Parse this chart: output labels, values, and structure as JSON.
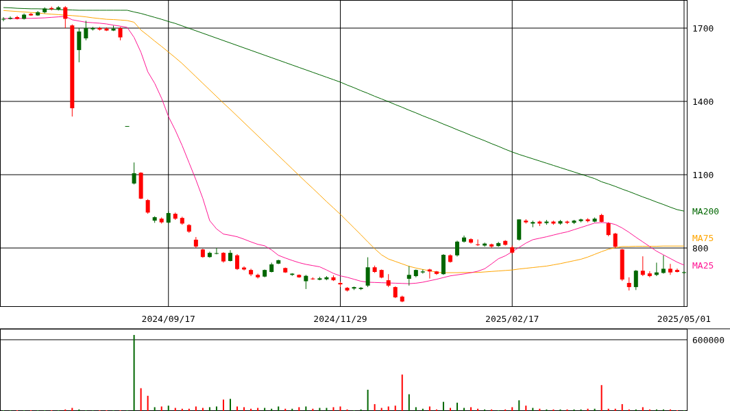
{
  "chart_data": [
    {
      "type": "candlestick",
      "categories": [
        null,
        null,
        null,
        null,
        null,
        null,
        null,
        null,
        null,
        null,
        null,
        null,
        null,
        null,
        null,
        null,
        null,
        null,
        null,
        null,
        null,
        null,
        null,
        null,
        "2024/09/17",
        null,
        null,
        null,
        null,
        null,
        null,
        null,
        null,
        null,
        null,
        null,
        null,
        null,
        null,
        null,
        null,
        null,
        null,
        null,
        null,
        null,
        null,
        null,
        null,
        "2024/11/29",
        null,
        null,
        null,
        null,
        null,
        null,
        null,
        null,
        null,
        null,
        null,
        null,
        null,
        null,
        null,
        null,
        null,
        null,
        null,
        null,
        null,
        null,
        null,
        null,
        "2025/02/17",
        null,
        null,
        null,
        null,
        null,
        null,
        null,
        null,
        null,
        null,
        null,
        null,
        null,
        null,
        null,
        null,
        null,
        null,
        null,
        null,
        null,
        null,
        null,
        null,
        "2025/05/01"
      ],
      "ohlc": [
        [
          1735,
          1745,
          1728,
          1738
        ],
        [
          1738,
          1748,
          1735,
          1742
        ],
        [
          1745,
          1750,
          1735,
          1738
        ],
        [
          1738,
          1760,
          1735,
          1755
        ],
        [
          1758,
          1762,
          1750,
          1752
        ],
        [
          1752,
          1770,
          1750,
          1765
        ],
        [
          1765,
          1785,
          1760,
          1780
        ],
        [
          1782,
          1788,
          1772,
          1778
        ],
        [
          1776,
          1790,
          1772,
          1785
        ],
        [
          1785,
          1790,
          1700,
          1738
        ],
        [
          1711,
          1715,
          1338,
          1372
        ],
        [
          1610,
          1700,
          1560,
          1686
        ],
        [
          1658,
          1730,
          1650,
          1700
        ],
        [
          1695,
          1705,
          1690,
          1700
        ],
        [
          1700,
          1705,
          1690,
          1694
        ],
        [
          1698,
          1703,
          1688,
          1690
        ],
        [
          1690,
          1710,
          1688,
          1698
        ],
        [
          1700,
          1705,
          1650,
          1662
        ],
        [
          1299,
          1299,
          1299,
          1299
        ],
        [
          1064,
          1150,
          1060,
          1106
        ],
        [
          1108,
          1110,
          1000,
          1002
        ],
        [
          996,
          1000,
          940,
          945
        ],
        [
          912,
          930,
          903,
          926
        ],
        [
          920,
          925,
          900,
          905
        ],
        [
          904,
          950,
          900,
          943
        ],
        [
          940,
          945,
          915,
          920
        ],
        [
          923,
          928,
          895,
          900
        ],
        [
          894,
          898,
          862,
          867
        ],
        [
          834,
          845,
          800,
          806
        ],
        [
          794,
          797,
          760,
          763
        ],
        [
          763,
          785,
          760,
          780
        ],
        [
          777,
          800,
          774,
          779
        ],
        [
          780,
          783,
          740,
          745
        ],
        [
          747,
          791,
          745,
          780
        ],
        [
          770,
          775,
          710,
          714
        ],
        [
          720,
          725,
          708,
          712
        ],
        [
          710,
          715,
          685,
          692
        ],
        [
          690,
          695,
          675,
          680
        ],
        [
          683,
          712,
          680,
          710
        ],
        [
          702,
          740,
          700,
          733
        ],
        [
          736,
          752,
          734,
          750
        ],
        [
          718,
          720,
          698,
          700
        ],
        [
          690,
          697,
          686,
          695
        ],
        [
          690,
          692,
          678,
          680
        ],
        [
          664,
          690,
          632,
          686
        ],
        [
          675,
          680,
          670,
          672
        ],
        [
          670,
          682,
          668,
          676
        ],
        [
          672,
          685,
          668,
          680
        ],
        [
          680,
          688,
          665,
          668
        ],
        [
          657,
          662,
          640,
          651
        ],
        [
          637,
          640,
          622,
          626
        ],
        [
          634,
          642,
          628,
          640
        ],
        [
          632,
          640,
          628,
          637
        ],
        [
          646,
          762,
          640,
          721
        ],
        [
          721,
          728,
          698,
          702
        ],
        [
          710,
          712,
          676,
          679
        ],
        [
          668,
          693,
          640,
          646
        ],
        [
          640,
          643,
          595,
          598
        ],
        [
          601,
          605,
          578,
          581
        ],
        [
          674,
          726,
          646,
          690
        ],
        [
          685,
          712,
          680,
          710
        ],
        [
          700,
          712,
          695,
          704
        ],
        [
          712,
          715,
          675,
          704
        ],
        [
          704,
          706,
          690,
          694
        ],
        [
          693,
          775,
          690,
          772
        ],
        [
          770,
          774,
          740,
          743
        ],
        [
          770,
          830,
          765,
          826
        ],
        [
          826,
          851,
          822,
          843
        ],
        [
          836,
          840,
          818,
          822
        ],
        [
          815,
          835,
          808,
          812
        ],
        [
          810,
          822,
          805,
          818
        ],
        [
          815,
          818,
          800,
          806
        ],
        [
          808,
          825,
          805,
          820
        ],
        [
          829,
          832,
          810,
          813
        ],
        [
          803,
          810,
          775,
          781
        ],
        [
          834,
          917,
          830,
          917
        ],
        [
          912,
          918,
          900,
          905
        ],
        [
          900,
          912,
          885,
          906
        ],
        [
          908,
          912,
          890,
          900
        ],
        [
          902,
          915,
          895,
          908
        ],
        [
          908,
          912,
          895,
          900
        ],
        [
          900,
          915,
          895,
          910
        ],
        [
          908,
          912,
          898,
          903
        ],
        [
          903,
          915,
          898,
          912
        ],
        [
          910,
          920,
          905,
          917
        ],
        [
          917,
          922,
          905,
          910
        ],
        [
          908,
          925,
          905,
          920
        ],
        [
          935,
          940,
          905,
          907
        ],
        [
          901,
          905,
          848,
          853
        ],
        [
          859,
          862,
          800,
          805
        ],
        [
          794,
          796,
          665,
          671
        ],
        [
          657,
          680,
          626,
          640
        ],
        [
          640,
          710,
          628,
          707
        ],
        [
          707,
          766,
          685,
          690
        ],
        [
          696,
          705,
          680,
          685
        ],
        [
          690,
          740,
          685,
          700
        ],
        [
          698,
          770,
          695,
          715
        ],
        [
          715,
          735,
          690,
          700
        ],
        [
          710,
          716,
          700,
          702
        ],
        [
          698,
          704,
          695,
          701
        ]
      ],
      "colors": [
        "#006600",
        "#006600",
        "#ff0000",
        "#006600",
        "#ff0000",
        "#006600",
        "#006600",
        "#ff0000",
        "#006600",
        "#ff0000",
        "#ff0000",
        "#006600",
        "#006600",
        "#006600",
        "#ff0000",
        "#ff0000",
        "#006600",
        "#ff0000",
        "#006600",
        "#006600",
        "#ff0000",
        "#ff0000",
        "#006600",
        "#ff0000",
        "#006600",
        "#ff0000",
        "#ff0000",
        "#ff0000",
        "#ff0000",
        "#ff0000",
        "#006600",
        "#006600",
        "#ff0000",
        "#006600",
        "#ff0000",
        "#ff0000",
        "#ff0000",
        "#ff0000",
        "#006600",
        "#006600",
        "#006600",
        "#ff0000",
        "#006600",
        "#ff0000",
        "#006600",
        "#ff0000",
        "#006600",
        "#006600",
        "#ff0000",
        "#ff0000",
        "#ff0000",
        "#006600",
        "#006600",
        "#006600",
        "#ff0000",
        "#ff0000",
        "#ff0000",
        "#ff0000",
        "#ff0000",
        "#006600",
        "#006600",
        "#006600",
        "#ff0000",
        "#ff0000",
        "#006600",
        "#ff0000",
        "#006600",
        "#006600",
        "#ff0000",
        "#ff0000",
        "#006600",
        "#ff0000",
        "#006600",
        "#ff0000",
        "#ff0000",
        "#006600",
        "#ff0000",
        "#006600",
        "#ff0000",
        "#006600",
        "#ff0000",
        "#006600",
        "#ff0000",
        "#006600",
        "#006600",
        "#ff0000",
        "#006600",
        "#ff0000",
        "#ff0000",
        "#ff0000",
        "#ff0000",
        "#ff0000",
        "#006600",
        "#ff0000",
        "#ff0000",
        "#006600",
        "#006600",
        "#ff0000",
        "#ff0000",
        "#006600"
      ],
      "series": [
        {
          "type": "line",
          "name": "MA200",
          "color": "#006600",
          "values": [
            1784,
            1783,
            1781,
            1780,
            1779,
            1779,
            1778,
            1777,
            1776,
            1775,
            1774,
            1773,
            1773,
            1773,
            1773,
            1773,
            1773,
            1773,
            1773,
            1766,
            1760,
            1752,
            1744,
            1736,
            1727,
            1719,
            1709,
            1699,
            1689,
            1679,
            1669,
            1659,
            1649,
            1639,
            1629,
            1619,
            1609,
            1599,
            1589,
            1579,
            1569,
            1559,
            1549,
            1539,
            1529,
            1519,
            1509,
            1499,
            1489,
            1479,
            1467,
            1456,
            1444,
            1433,
            1421,
            1410,
            1399,
            1387,
            1376,
            1364,
            1353,
            1341,
            1330,
            1319,
            1307,
            1296,
            1284,
            1273,
            1261,
            1250,
            1239,
            1227,
            1216,
            1204,
            1193,
            1183,
            1174,
            1165,
            1156,
            1147,
            1138,
            1129,
            1120,
            1111,
            1102,
            1093,
            1084,
            1071,
            1062,
            1052,
            1041,
            1031,
            1020,
            1009,
            999,
            988,
            978,
            967,
            957,
            951
          ]
        },
        {
          "type": "line",
          "name": "MA75",
          "color": "#ffa500",
          "values": [
            1772,
            1770,
            1768,
            1766,
            1764,
            1762,
            1759,
            1757,
            1755,
            1753,
            1751,
            1749,
            1746,
            1742,
            1739,
            1736,
            1735,
            1733,
            1731,
            1724,
            1692,
            1670,
            1647,
            1625,
            1602,
            1579,
            1555,
            1528,
            1501,
            1474,
            1447,
            1420,
            1393,
            1367,
            1340,
            1313,
            1286,
            1259,
            1232,
            1205,
            1178,
            1151,
            1124,
            1097,
            1070,
            1044,
            1017,
            990,
            964,
            938,
            910,
            882,
            854,
            825,
            797,
            772,
            755,
            745,
            735,
            725,
            718,
            712,
            707,
            701,
            699,
            699,
            699,
            700,
            700,
            700,
            702,
            704,
            706,
            708,
            710,
            714,
            717,
            720,
            723,
            726,
            731,
            736,
            742,
            748,
            754,
            763,
            774,
            785,
            795,
            801,
            806,
            806,
            807,
            807,
            807,
            807,
            808,
            808,
            808,
            808
          ]
        },
        {
          "type": "line",
          "name": "MA25",
          "color": "#ff1493",
          "values": [
            1739,
            1739,
            1739,
            1740,
            1740,
            1741,
            1742,
            1744,
            1746,
            1748,
            1734,
            1729,
            1724,
            1722,
            1720,
            1717,
            1712,
            1708,
            1703,
            1662,
            1601,
            1521,
            1474,
            1413,
            1338,
            1282,
            1219,
            1149,
            1079,
            1003,
            912,
            878,
            857,
            852,
            846,
            836,
            825,
            815,
            809,
            792,
            770,
            759,
            749,
            740,
            733,
            728,
            723,
            710,
            696,
            686,
            680,
            672,
            664,
            660,
            659,
            658,
            657,
            656,
            655,
            654,
            656,
            660,
            666,
            672,
            679,
            686,
            690,
            694,
            699,
            705,
            715,
            735,
            756,
            768,
            785,
            802,
            820,
            834,
            840,
            846,
            853,
            860,
            866,
            875,
            884,
            893,
            902,
            904,
            903,
            896,
            882,
            864,
            844,
            825,
            806,
            787,
            772,
            757,
            742,
            730
          ]
        }
      ],
      "ylim": [
        559,
        1815
      ],
      "yticks": [
        800,
        1100,
        1400,
        1700
      ],
      "grid": true,
      "legend": "right"
    },
    {
      "type": "bar",
      "ylim": [
        0,
        692000
      ],
      "yticks": [
        600000
      ],
      "grid": "y",
      "categories": [
        null,
        null,
        null,
        null,
        null,
        null,
        null,
        null,
        null,
        null,
        null,
        null,
        null,
        null,
        null,
        null,
        null,
        null,
        null,
        null,
        null,
        null,
        null,
        null,
        null,
        null,
        null,
        null,
        null,
        null,
        null,
        null,
        null,
        null,
        null,
        null,
        null,
        null,
        null,
        null,
        null,
        null,
        null,
        null,
        null,
        null,
        null,
        null,
        null,
        null,
        null,
        null,
        null,
        null,
        null,
        null,
        null,
        null,
        null,
        null,
        null,
        null,
        null,
        null,
        null,
        null,
        null,
        null,
        null,
        null,
        null,
        null,
        null,
        null,
        null,
        null,
        null,
        null,
        null,
        null,
        null,
        null,
        null,
        null,
        null,
        null,
        null,
        null,
        null,
        null,
        null,
        null,
        null,
        null,
        null,
        null,
        null,
        null,
        null,
        null
      ],
      "values": [
        6000,
        6000,
        6000,
        6000,
        6000,
        6000,
        6000,
        6000,
        6000,
        13000,
        26000,
        13000,
        6000,
        6000,
        6000,
        6000,
        6000,
        6000,
        6000,
        640000,
        192000,
        128000,
        32000,
        38000,
        45000,
        26000,
        19000,
        19000,
        38000,
        26000,
        32000,
        38000,
        96000,
        102000,
        38000,
        32000,
        19000,
        26000,
        26000,
        19000,
        38000,
        19000,
        19000,
        32000,
        38000,
        19000,
        26000,
        26000,
        32000,
        38000,
        13000,
        6000,
        13000,
        179000,
        58000,
        26000,
        38000,
        45000,
        307000,
        141000,
        32000,
        19000,
        38000,
        13000,
        77000,
        26000,
        70000,
        26000,
        32000,
        19000,
        13000,
        13000,
        6000,
        13000,
        32000,
        90000,
        45000,
        26000,
        19000,
        13000,
        13000,
        13000,
        13000,
        13000,
        13000,
        19000,
        19000,
        218000,
        19000,
        19000,
        58000,
        13000,
        13000,
        32000,
        13000,
        13000,
        13000,
        13000,
        6000,
        6000
      ],
      "colors": [
        "#006600",
        "#006600",
        "#ff0000",
        "#006600",
        "#ff0000",
        "#006600",
        "#006600",
        "#ff0000",
        "#006600",
        "#ff0000",
        "#ff0000",
        "#006600",
        "#006600",
        "#006600",
        "#ff0000",
        "#ff0000",
        "#006600",
        "#ff0000",
        "#006600",
        "#006600",
        "#ff0000",
        "#ff0000",
        "#006600",
        "#ff0000",
        "#006600",
        "#ff0000",
        "#ff0000",
        "#ff0000",
        "#ff0000",
        "#ff0000",
        "#006600",
        "#006600",
        "#ff0000",
        "#006600",
        "#ff0000",
        "#ff0000",
        "#ff0000",
        "#ff0000",
        "#006600",
        "#006600",
        "#006600",
        "#ff0000",
        "#006600",
        "#ff0000",
        "#006600",
        "#ff0000",
        "#006600",
        "#006600",
        "#ff0000",
        "#ff0000",
        "#ff0000",
        "#006600",
        "#006600",
        "#006600",
        "#ff0000",
        "#ff0000",
        "#ff0000",
        "#ff0000",
        "#ff0000",
        "#006600",
        "#006600",
        "#006600",
        "#ff0000",
        "#ff0000",
        "#006600",
        "#ff0000",
        "#006600",
        "#006600",
        "#ff0000",
        "#ff0000",
        "#006600",
        "#ff0000",
        "#006600",
        "#ff0000",
        "#ff0000",
        "#006600",
        "#ff0000",
        "#006600",
        "#ff0000",
        "#006600",
        "#ff0000",
        "#006600",
        "#ff0000",
        "#006600",
        "#006600",
        "#ff0000",
        "#006600",
        "#ff0000",
        "#ff0000",
        "#ff0000",
        "#ff0000",
        "#ff0000",
        "#006600",
        "#ff0000",
        "#ff0000",
        "#006600",
        "#006600",
        "#ff0000",
        "#ff0000",
        "#006600"
      ]
    }
  ]
}
